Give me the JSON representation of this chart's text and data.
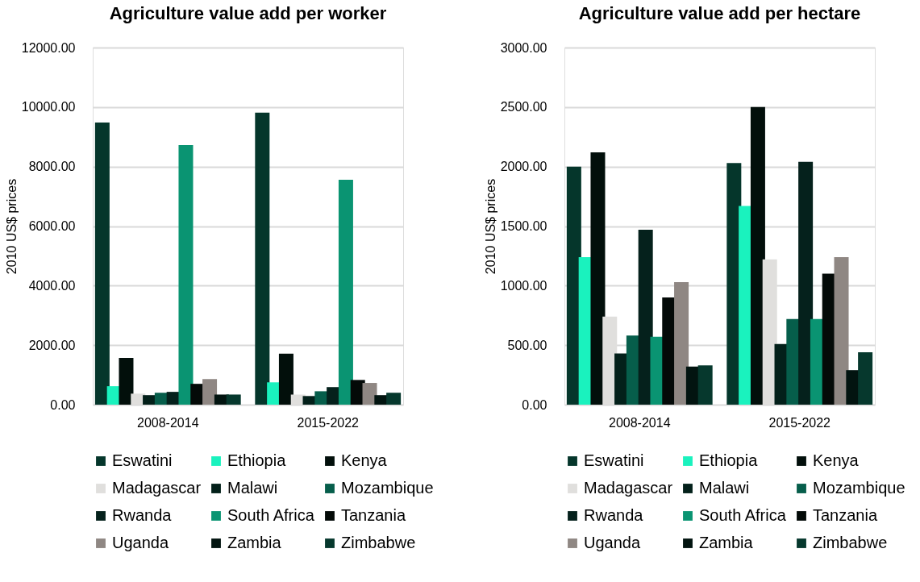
{
  "chart_data": [
    {
      "type": "bar",
      "title": "Agriculture value add per worker",
      "ylabel": "2010 US$ prices",
      "categories": [
        "2008-2014",
        "2015-2022"
      ],
      "ylim": [
        0,
        12000
      ],
      "yticks": [
        {
          "value": 0,
          "label": "0.00"
        },
        {
          "value": 2000,
          "label": "2000.00"
        },
        {
          "value": 4000,
          "label": "4000.00"
        },
        {
          "value": 6000,
          "label": "6000.00"
        },
        {
          "value": 8000,
          "label": "8000.00"
        },
        {
          "value": 10000,
          "label": "10000.00"
        },
        {
          "value": 12000,
          "label": "12000.00"
        }
      ],
      "grid": "y",
      "legend": "bottom",
      "series": [
        {
          "name": "Eswatini",
          "color": "#05362b",
          "values": [
            9480,
            9810
          ]
        },
        {
          "name": "Ethiopia",
          "color": "#1af2be",
          "values": [
            620,
            750
          ]
        },
        {
          "name": "Kenya",
          "color": "#020f0b",
          "values": [
            1570,
            1710
          ]
        },
        {
          "name": "Madagascar",
          "color": "#e0dfdd",
          "values": [
            370,
            340
          ]
        },
        {
          "name": "Malawi",
          "color": "#03201a",
          "values": [
            320,
            290
          ]
        },
        {
          "name": "Mozambique",
          "color": "#065e4b",
          "values": [
            400,
            450
          ]
        },
        {
          "name": "Rwanda",
          "color": "#05211c",
          "values": [
            430,
            590
          ]
        },
        {
          "name": "South Africa",
          "color": "#0a9472",
          "values": [
            8720,
            7560
          ]
        },
        {
          "name": "Tanzania",
          "color": "#040a08",
          "values": [
            700,
            830
          ]
        },
        {
          "name": "Uganda",
          "color": "#8f8783",
          "values": [
            860,
            730
          ]
        },
        {
          "name": "Zambia",
          "color": "#021410",
          "values": [
            340,
            320
          ]
        },
        {
          "name": "Zimbabwe",
          "color": "#06382d",
          "values": [
            340,
            400
          ]
        }
      ]
    },
    {
      "type": "bar",
      "title": "Agriculture value add per hectare",
      "ylabel": "2010 US$ prices",
      "categories": [
        "2008-2014",
        "2015-2022"
      ],
      "ylim": [
        0,
        3000
      ],
      "yticks": [
        {
          "value": 0,
          "label": "0.00"
        },
        {
          "value": 500,
          "label": "500.00"
        },
        {
          "value": 1000,
          "label": "1000.00"
        },
        {
          "value": 1500,
          "label": "1500.00"
        },
        {
          "value": 2000,
          "label": "2000.00"
        },
        {
          "value": 2500,
          "label": "2500.00"
        },
        {
          "value": 3000,
          "label": "3000.00"
        }
      ],
      "grid": "y",
      "legend": "bottom",
      "series": [
        {
          "name": "Eswatini",
          "color": "#05362b",
          "values": [
            2000,
            2030
          ]
        },
        {
          "name": "Ethiopia",
          "color": "#1af2be",
          "values": [
            1240,
            1670
          ]
        },
        {
          "name": "Kenya",
          "color": "#020f0b",
          "values": [
            2120,
            2500
          ]
        },
        {
          "name": "Madagascar",
          "color": "#e0dfdd",
          "values": [
            740,
            1220
          ]
        },
        {
          "name": "Malawi",
          "color": "#03201a",
          "values": [
            430,
            510
          ]
        },
        {
          "name": "Mozambique",
          "color": "#065e4b",
          "values": [
            580,
            720
          ]
        },
        {
          "name": "Rwanda",
          "color": "#05211c",
          "values": [
            1470,
            2040
          ]
        },
        {
          "name": "South Africa",
          "color": "#0a9472",
          "values": [
            570,
            720
          ]
        },
        {
          "name": "Tanzania",
          "color": "#040a08",
          "values": [
            900,
            1100
          ]
        },
        {
          "name": "Uganda",
          "color": "#8f8783",
          "values": [
            1030,
            1240
          ]
        },
        {
          "name": "Zambia",
          "color": "#021410",
          "values": [
            320,
            290
          ]
        },
        {
          "name": "Zimbabwe",
          "color": "#06382d",
          "values": [
            330,
            440
          ]
        }
      ]
    }
  ]
}
